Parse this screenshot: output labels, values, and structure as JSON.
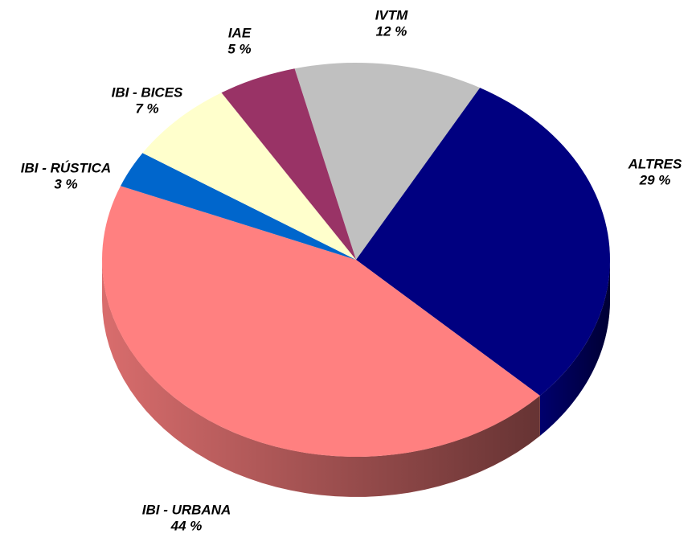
{
  "chart_data": {
    "type": "pie",
    "categories": [
      "IVTM",
      "ALTRES",
      "IBI - URBANA",
      "IBI - RÚSTICA",
      "IBI - BICES",
      "IAE"
    ],
    "values": [
      12,
      29,
      44,
      3,
      7,
      5
    ],
    "value_labels": [
      "12 %",
      "29 %",
      "44 %",
      "3 %",
      "7 %",
      "5 %"
    ],
    "colors": [
      "#c0c0c0",
      "#000080",
      "#ff8080",
      "#0066cc",
      "#ffffcc",
      "#993366"
    ]
  }
}
